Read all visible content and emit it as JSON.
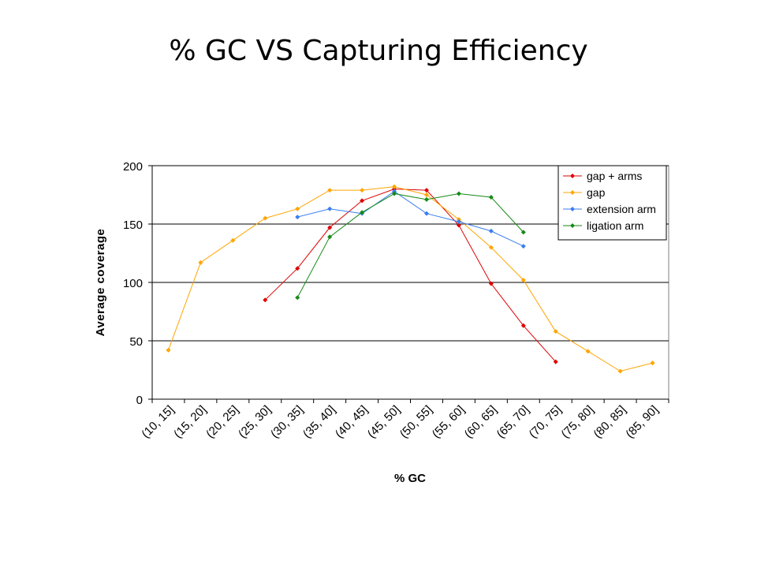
{
  "slide": {
    "title": "% GC VS Capturing Efficiency"
  },
  "chart_data": {
    "type": "line",
    "title": "",
    "xlabel": "% GC",
    "ylabel": "Average coverage",
    "ylim": [
      0,
      200
    ],
    "yticks": [
      0,
      50,
      100,
      150,
      200
    ],
    "grid": true,
    "legend": "top-right",
    "categories": [
      "(10, 15]",
      "(15, 20]",
      "(20, 25]",
      "(25, 30]",
      "(30, 35]",
      "(35, 40]",
      "(40, 45]",
      "(45, 50]",
      "(50, 55]",
      "(55, 60]",
      "(60, 65]",
      "(65, 70]",
      "(70, 75]",
      "(75, 80]",
      "(80, 85]",
      "(85, 90]"
    ],
    "series": [
      {
        "name": "gap + arms",
        "color": "#e00000",
        "values": [
          null,
          null,
          null,
          85,
          112,
          147,
          170,
          180,
          179,
          149,
          99,
          63,
          32,
          null,
          null,
          null
        ]
      },
      {
        "name": "gap",
        "color": "#ffa500",
        "values": [
          42,
          117,
          136,
          155,
          163,
          179,
          179,
          182,
          175,
          154,
          130,
          102,
          58,
          41,
          24,
          31
        ]
      },
      {
        "name": "extension arm",
        "color": "#3a7df0",
        "values": [
          null,
          null,
          null,
          null,
          156,
          163,
          159,
          178,
          159,
          152,
          144,
          131,
          null,
          null,
          null,
          null
        ]
      },
      {
        "name": "ligation arm",
        "color": "#168a16",
        "values": [
          null,
          null,
          null,
          null,
          87,
          139,
          160,
          176,
          171,
          176,
          173,
          143,
          null,
          null,
          null,
          null
        ]
      }
    ]
  }
}
